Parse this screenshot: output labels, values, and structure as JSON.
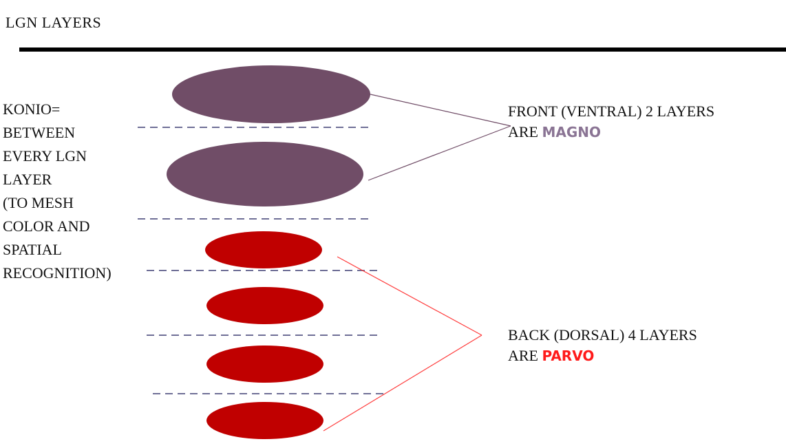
{
  "title": "LGN LAYERS",
  "konio": {
    "lines": [
      "KONIO=",
      "BETWEEN",
      "EVERY LGN",
      "LAYER",
      "(TO MESH",
      "COLOR AND",
      "SPATIAL",
      "RECOGNITION)"
    ]
  },
  "magno_label": {
    "line1": "FRONT (VENTRAL)  2 LAYERS",
    "prefix": "ARE ",
    "highlight": "MAGNO"
  },
  "parvo_label": {
    "line1": "BACK (DORSAL) 4 LAYERS",
    "prefix": "ARE ",
    "highlight": "PARVO"
  },
  "colors": {
    "magno": "#704d67",
    "parvo": "#c00000",
    "dash": "#6e6e96",
    "magno_text": "#8a7494",
    "parvo_text": "#ff1a1a"
  }
}
